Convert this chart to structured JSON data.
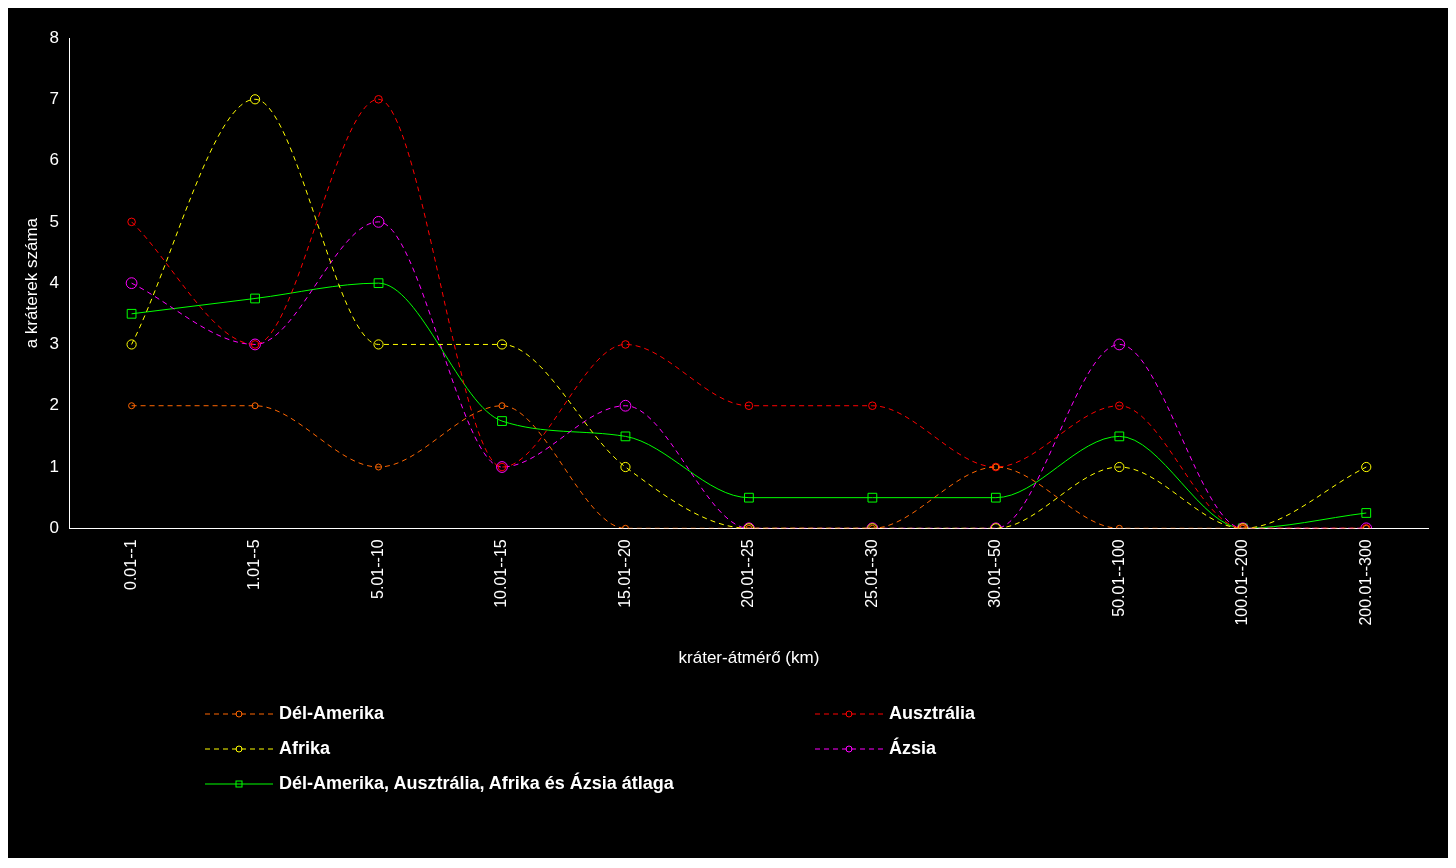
{
  "chart_data": {
    "type": "line",
    "xlabel": "kráter-átmérő (km)",
    "ylabel": "a kráterek száma",
    "categories": [
      "0.01--1",
      "1.01--5",
      "5.01--10",
      "10.01--15",
      "15.01--20",
      "20.01--25",
      "25.01--30",
      "30.01--50",
      "50.01--100",
      "100.01--200",
      "200.01--300"
    ],
    "ylim": [
      0,
      8
    ],
    "yticks": [
      0,
      1,
      2,
      3,
      4,
      5,
      6,
      7,
      8
    ],
    "grid": false,
    "legend": "bottom",
    "series": [
      {
        "name": "Dél-Amerika",
        "color": "#ff6600",
        "marker": "circle",
        "line_style": "dashed",
        "values": [
          2,
          2,
          1,
          2,
          0,
          0,
          0,
          1,
          0,
          0,
          0
        ]
      },
      {
        "name": "Ausztrália",
        "color": "#ff0000",
        "marker": "circle",
        "line_style": "dashed",
        "values": [
          5,
          3,
          7,
          1,
          3,
          2,
          2,
          1,
          2,
          0,
          0
        ]
      },
      {
        "name": "Afrika",
        "color": "#ffff00",
        "marker": "circle",
        "line_style": "dashed",
        "values": [
          3,
          7,
          3,
          3,
          1,
          0,
          0,
          0,
          1,
          0,
          1
        ]
      },
      {
        "name": "Ázsia",
        "color": "#ff00ff",
        "marker": "circle",
        "line_style": "dashed",
        "values": [
          4,
          3,
          5,
          1,
          2,
          0,
          0,
          0,
          3,
          0,
          0
        ]
      },
      {
        "name": "Dél-Amerika, Ausztrália, Afrika és Ázsia átlaga",
        "color": "#00ff00",
        "marker": "square",
        "line_style": "solid",
        "values": [
          3.5,
          3.75,
          4,
          1.75,
          1.5,
          0.5,
          0.5,
          0.5,
          1.5,
          0,
          0.25
        ]
      }
    ]
  }
}
